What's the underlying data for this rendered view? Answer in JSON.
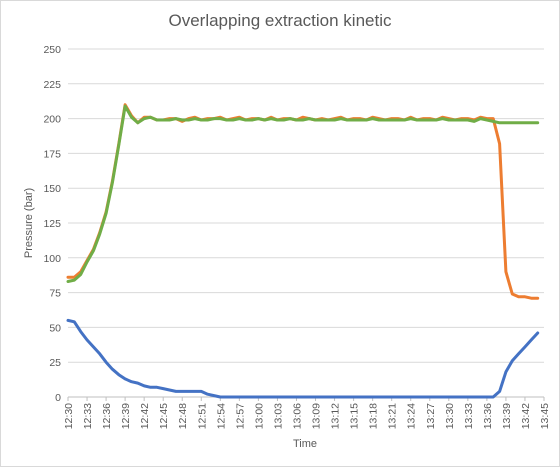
{
  "chart_data": {
    "type": "line",
    "title": "Overlapping extraction kinetic",
    "xlabel": "Time",
    "ylabel": "Pressure (bar)",
    "ylim": [
      0,
      250
    ],
    "yticks": [
      0,
      25,
      50,
      75,
      100,
      125,
      150,
      175,
      200,
      225,
      250
    ],
    "grid": true,
    "legend": "none",
    "xtick_labels": [
      "12:30",
      "12:33",
      "12:36",
      "12:39",
      "12:42",
      "12:45",
      "12:48",
      "12:51",
      "12:54",
      "12:57",
      "13:00",
      "13:03",
      "13:06",
      "13:09",
      "13:12",
      "13:15",
      "13:18",
      "13:21",
      "13:24",
      "13:27",
      "13:30",
      "13:33",
      "13:36",
      "13:39",
      "13:42",
      "13:45"
    ],
    "x_range_minutes": [
      0,
      75
    ],
    "series": [
      {
        "color": "#ed7d31",
        "points": [
          [
            0,
            86
          ],
          [
            1,
            86
          ],
          [
            2,
            90
          ],
          [
            3,
            98
          ],
          [
            4,
            106
          ],
          [
            5,
            118
          ],
          [
            6,
            133
          ],
          [
            7,
            155
          ],
          [
            8,
            182
          ],
          [
            9,
            210
          ],
          [
            10,
            202
          ],
          [
            11,
            197
          ],
          [
            12,
            201
          ],
          [
            13,
            201
          ],
          [
            14,
            199
          ],
          [
            15,
            199
          ],
          [
            16,
            200
          ],
          [
            17,
            200
          ],
          [
            18,
            198
          ],
          [
            19,
            200
          ],
          [
            20,
            201
          ],
          [
            21,
            199
          ],
          [
            22,
            200
          ],
          [
            23,
            200
          ],
          [
            24,
            201
          ],
          [
            25,
            199
          ],
          [
            26,
            200
          ],
          [
            27,
            201
          ],
          [
            28,
            199
          ],
          [
            29,
            200
          ],
          [
            30,
            200
          ],
          [
            31,
            199
          ],
          [
            32,
            201
          ],
          [
            33,
            199
          ],
          [
            34,
            200
          ],
          [
            35,
            200
          ],
          [
            36,
            199
          ],
          [
            37,
            201
          ],
          [
            38,
            200
          ],
          [
            39,
            199
          ],
          [
            40,
            200
          ],
          [
            41,
            199
          ],
          [
            42,
            200
          ],
          [
            43,
            201
          ],
          [
            44,
            199
          ],
          [
            45,
            200
          ],
          [
            46,
            200
          ],
          [
            47,
            199
          ],
          [
            48,
            201
          ],
          [
            49,
            200
          ],
          [
            50,
            199
          ],
          [
            51,
            200
          ],
          [
            52,
            200
          ],
          [
            53,
            199
          ],
          [
            54,
            201
          ],
          [
            55,
            199
          ],
          [
            56,
            200
          ],
          [
            57,
            200
          ],
          [
            58,
            199
          ],
          [
            59,
            201
          ],
          [
            60,
            200
          ],
          [
            61,
            199
          ],
          [
            62,
            200
          ],
          [
            63,
            200
          ],
          [
            64,
            199
          ],
          [
            65,
            201
          ],
          [
            66,
            200
          ],
          [
            67,
            200
          ],
          [
            68,
            182
          ],
          [
            69,
            90
          ],
          [
            70,
            74
          ],
          [
            71,
            72
          ],
          [
            72,
            72
          ],
          [
            73,
            71
          ],
          [
            74,
            71
          ]
        ]
      },
      {
        "color": "#70ad47",
        "points": [
          [
            0,
            83
          ],
          [
            1,
            84
          ],
          [
            2,
            88
          ],
          [
            3,
            97
          ],
          [
            4,
            105
          ],
          [
            5,
            117
          ],
          [
            6,
            132
          ],
          [
            7,
            154
          ],
          [
            8,
            181
          ],
          [
            9,
            209
          ],
          [
            10,
            201
          ],
          [
            11,
            197
          ],
          [
            12,
            200
          ],
          [
            13,
            201
          ],
          [
            14,
            199
          ],
          [
            15,
            199
          ],
          [
            16,
            199
          ],
          [
            17,
            200
          ],
          [
            18,
            199
          ],
          [
            19,
            199
          ],
          [
            20,
            200
          ],
          [
            21,
            199
          ],
          [
            22,
            199
          ],
          [
            23,
            200
          ],
          [
            24,
            200
          ],
          [
            25,
            199
          ],
          [
            26,
            199
          ],
          [
            27,
            200
          ],
          [
            28,
            199
          ],
          [
            29,
            199
          ],
          [
            30,
            200
          ],
          [
            31,
            199
          ],
          [
            32,
            200
          ],
          [
            33,
            199
          ],
          [
            34,
            199
          ],
          [
            35,
            200
          ],
          [
            36,
            199
          ],
          [
            37,
            199
          ],
          [
            38,
            200
          ],
          [
            39,
            199
          ],
          [
            40,
            199
          ],
          [
            41,
            199
          ],
          [
            42,
            199
          ],
          [
            43,
            200
          ],
          [
            44,
            199
          ],
          [
            45,
            199
          ],
          [
            46,
            199
          ],
          [
            47,
            199
          ],
          [
            48,
            200
          ],
          [
            49,
            199
          ],
          [
            50,
            199
          ],
          [
            51,
            199
          ],
          [
            52,
            199
          ],
          [
            53,
            199
          ],
          [
            54,
            200
          ],
          [
            55,
            199
          ],
          [
            56,
            199
          ],
          [
            57,
            199
          ],
          [
            58,
            199
          ],
          [
            59,
            200
          ],
          [
            60,
            199
          ],
          [
            61,
            199
          ],
          [
            62,
            199
          ],
          [
            63,
            199
          ],
          [
            64,
            198
          ],
          [
            65,
            200
          ],
          [
            66,
            199
          ],
          [
            67,
            198
          ],
          [
            68,
            197
          ],
          [
            69,
            197
          ],
          [
            70,
            197
          ],
          [
            71,
            197
          ],
          [
            72,
            197
          ],
          [
            73,
            197
          ],
          [
            74,
            197
          ]
        ]
      },
      {
        "color": "#4472c4",
        "points": [
          [
            0,
            55
          ],
          [
            1,
            54
          ],
          [
            2,
            47
          ],
          [
            3,
            41
          ],
          [
            4,
            36
          ],
          [
            5,
            31
          ],
          [
            6,
            25
          ],
          [
            7,
            20
          ],
          [
            8,
            16
          ],
          [
            9,
            13
          ],
          [
            10,
            11
          ],
          [
            11,
            10
          ],
          [
            12,
            8
          ],
          [
            13,
            7
          ],
          [
            14,
            7
          ],
          [
            15,
            6
          ],
          [
            16,
            5
          ],
          [
            17,
            4
          ],
          [
            18,
            4
          ],
          [
            19,
            4
          ],
          [
            20,
            4
          ],
          [
            21,
            4
          ],
          [
            22,
            2
          ],
          [
            23,
            1
          ],
          [
            24,
            0
          ],
          [
            25,
            0
          ],
          [
            26,
            0
          ],
          [
            27,
            0
          ],
          [
            28,
            0
          ],
          [
            29,
            0
          ],
          [
            30,
            0
          ],
          [
            31,
            0
          ],
          [
            32,
            0
          ],
          [
            33,
            0
          ],
          [
            34,
            0
          ],
          [
            35,
            0
          ],
          [
            36,
            0
          ],
          [
            37,
            0
          ],
          [
            38,
            0
          ],
          [
            39,
            0
          ],
          [
            40,
            0
          ],
          [
            41,
            0
          ],
          [
            42,
            0
          ],
          [
            43,
            0
          ],
          [
            44,
            0
          ],
          [
            45,
            0
          ],
          [
            46,
            0
          ],
          [
            47,
            0
          ],
          [
            48,
            0
          ],
          [
            49,
            0
          ],
          [
            50,
            0
          ],
          [
            51,
            0
          ],
          [
            52,
            0
          ],
          [
            53,
            0
          ],
          [
            54,
            0
          ],
          [
            55,
            0
          ],
          [
            56,
            0
          ],
          [
            57,
            0
          ],
          [
            58,
            0
          ],
          [
            59,
            0
          ],
          [
            60,
            0
          ],
          [
            61,
            0
          ],
          [
            62,
            0
          ],
          [
            63,
            0
          ],
          [
            64,
            0
          ],
          [
            65,
            0
          ],
          [
            66,
            0
          ],
          [
            67,
            0
          ],
          [
            68,
            4
          ],
          [
            69,
            18
          ],
          [
            70,
            26
          ],
          [
            71,
            31
          ],
          [
            72,
            36
          ],
          [
            73,
            41
          ],
          [
            74,
            46
          ]
        ]
      }
    ]
  }
}
